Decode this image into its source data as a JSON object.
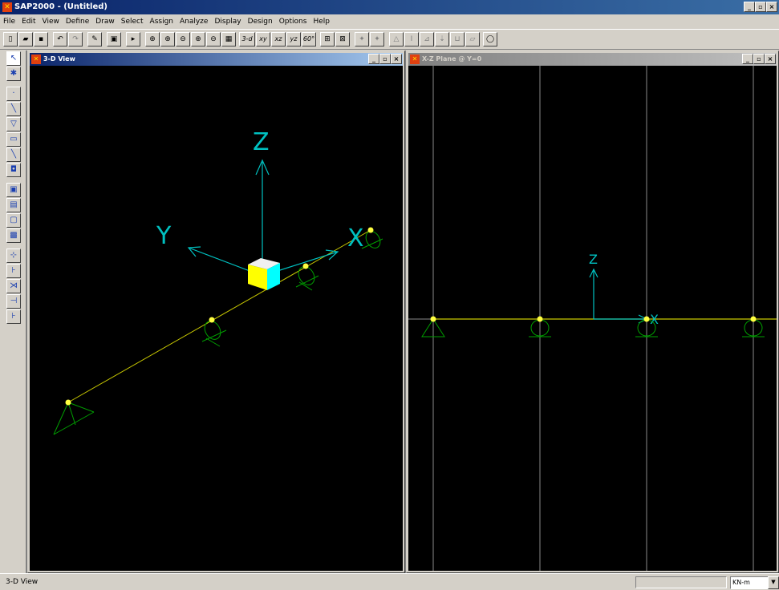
{
  "app": {
    "title": "SAP2000 - (Untitled)",
    "icon": "sap-logo-icon",
    "controls": [
      "_",
      "▫",
      "×"
    ]
  },
  "menu": [
    "File",
    "Edit",
    "View",
    "Define",
    "Draw",
    "Select",
    "Assign",
    "Analyze",
    "Display",
    "Design",
    "Options",
    "Help"
  ],
  "toolbar": {
    "view_3d": "3-d",
    "view_xy": "xy",
    "view_xz": "xz",
    "view_yz": "yz",
    "view_perspective": "60°"
  },
  "windows": {
    "left": {
      "title": "3-D View",
      "controls": [
        "_",
        "▫",
        "×"
      ],
      "axes": {
        "z": "Z",
        "y": "Y",
        "x": "X"
      }
    },
    "right": {
      "title": "X-Z Plane @ Y=0",
      "controls": [
        "_",
        "▫",
        "×"
      ],
      "axes": {
        "z": "Z",
        "x": "X"
      }
    }
  },
  "status": {
    "text": "3-D View",
    "units": "KN-m"
  },
  "colors": {
    "canvas": "#000000",
    "axis": "#00c0c0",
    "frame": "#e0e000",
    "support": "#00a000",
    "grid": "#8a8a8a",
    "cube_yellow": "#ffff00",
    "cube_cyan": "#00ffff"
  }
}
